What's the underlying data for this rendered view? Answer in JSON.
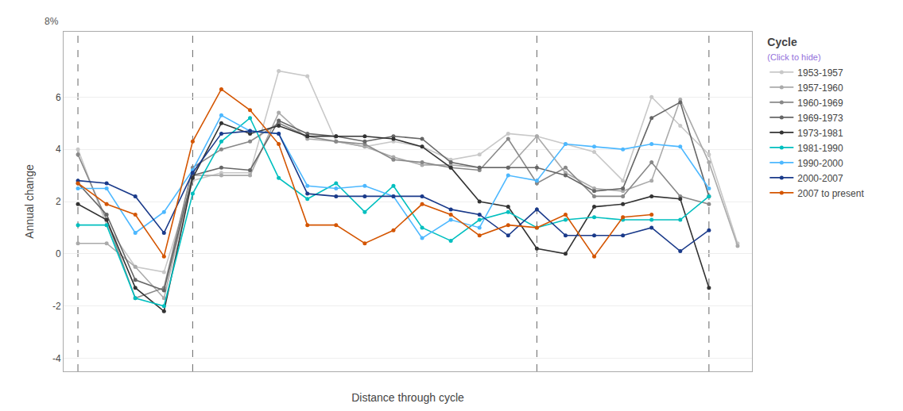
{
  "chart_data": {
    "type": "line",
    "xlabel": "Distance through cycle",
    "ylabel": "Annual change",
    "x": [
      0,
      1,
      2,
      3,
      4,
      5,
      6,
      7,
      8,
      9,
      10,
      11,
      12,
      13,
      14,
      15,
      16,
      17,
      18,
      19,
      20,
      21,
      22,
      23
    ],
    "xlim": [
      -0.5,
      23.5
    ],
    "ylim": [
      -4.5,
      8.5
    ],
    "yticks": [
      -4,
      -2,
      0,
      2,
      4,
      6
    ],
    "grid": true,
    "tick_labels": "y",
    "marker": "circle",
    "legend": "right",
    "legend_title": "Cycle",
    "legend_subtitle": "(Click to hide)",
    "vlines": [
      0,
      4,
      16,
      22
    ],
    "annotations": [
      {
        "text": "8%"
      }
    ],
    "series": [
      {
        "name": "1953-1957",
        "color": "#c8c8c8",
        "values": [
          4.0,
          1.1,
          -0.5,
          -0.7,
          2.8,
          3.1,
          3.1,
          7.0,
          6.8,
          4.3,
          4.1,
          4.3,
          4.1,
          3.6,
          3.8,
          4.6,
          4.5,
          4.2,
          3.9,
          2.8,
          6.0,
          4.9,
          3.8,
          0.4
        ]
      },
      {
        "name": "1957-1960",
        "color": "#aaaaaa",
        "values": [
          0.4,
          0.4,
          -0.5,
          -1.7,
          3.0,
          3.0,
          3.0,
          5.4,
          4.4,
          4.3,
          4.1,
          3.7,
          3.4,
          3.4,
          3.3,
          3.3,
          4.5,
          3.1,
          2.5,
          2.4,
          2.8,
          5.9,
          3.5,
          0.3
        ]
      },
      {
        "name": "1960-1969",
        "color": "#888888",
        "values": [
          3.8,
          1.3,
          -1.7,
          -1.3,
          3.3,
          4.0,
          4.3,
          5.0,
          4.5,
          4.3,
          4.2,
          3.6,
          3.5,
          3.3,
          3.2,
          4.4,
          2.7,
          3.3,
          2.2,
          2.2,
          3.5,
          2.2,
          1.9,
          null
        ]
      },
      {
        "name": "1969-1973",
        "color": "#666666",
        "values": [
          2.7,
          1.5,
          -1.0,
          -1.4,
          3.0,
          3.3,
          3.2,
          5.1,
          4.6,
          4.5,
          4.3,
          4.5,
          4.4,
          3.5,
          3.3,
          3.3,
          3.3,
          3.0,
          2.4,
          2.5,
          5.2,
          5.8,
          2.2,
          null
        ]
      },
      {
        "name": "1973-1981",
        "color": "#333333",
        "values": [
          1.9,
          1.3,
          -1.3,
          -2.2,
          2.9,
          5.0,
          4.6,
          4.9,
          4.5,
          4.5,
          4.5,
          4.4,
          4.1,
          3.3,
          2.0,
          1.8,
          0.2,
          0.0,
          1.8,
          1.9,
          2.2,
          2.1,
          -1.3,
          null
        ]
      },
      {
        "name": "1981-1990",
        "color": "#00bfbf",
        "values": [
          1.1,
          1.1,
          -1.7,
          -2.0,
          2.3,
          4.3,
          5.2,
          2.9,
          2.1,
          2.7,
          1.6,
          2.6,
          1.0,
          0.5,
          1.3,
          1.6,
          1.0,
          1.3,
          1.4,
          1.3,
          1.3,
          1.3,
          2.2,
          null
        ]
      },
      {
        "name": "1990-2000",
        "color": "#4db8ff",
        "values": [
          2.5,
          2.5,
          0.8,
          1.6,
          3.2,
          5.3,
          4.7,
          4.6,
          2.6,
          2.5,
          2.6,
          2.2,
          0.6,
          1.3,
          1.0,
          3.0,
          2.8,
          4.2,
          4.1,
          4.0,
          4.2,
          4.1,
          2.5,
          null
        ]
      },
      {
        "name": "2000-2007",
        "color": "#1a3a8a",
        "values": [
          2.8,
          2.7,
          2.2,
          0.8,
          3.1,
          4.6,
          4.7,
          4.6,
          2.3,
          2.2,
          2.2,
          2.2,
          2.2,
          1.7,
          1.5,
          0.7,
          1.7,
          0.7,
          0.7,
          0.7,
          1.0,
          0.1,
          0.9,
          null
        ]
      },
      {
        "name": "2007 to present",
        "color": "#d45500",
        "values": [
          2.7,
          1.9,
          1.5,
          -0.1,
          4.3,
          6.3,
          5.5,
          4.2,
          1.1,
          1.1,
          0.4,
          0.9,
          1.9,
          1.5,
          0.7,
          1.1,
          1.0,
          1.5,
          -0.1,
          1.4,
          1.5,
          null,
          null,
          null
        ]
      }
    ]
  }
}
